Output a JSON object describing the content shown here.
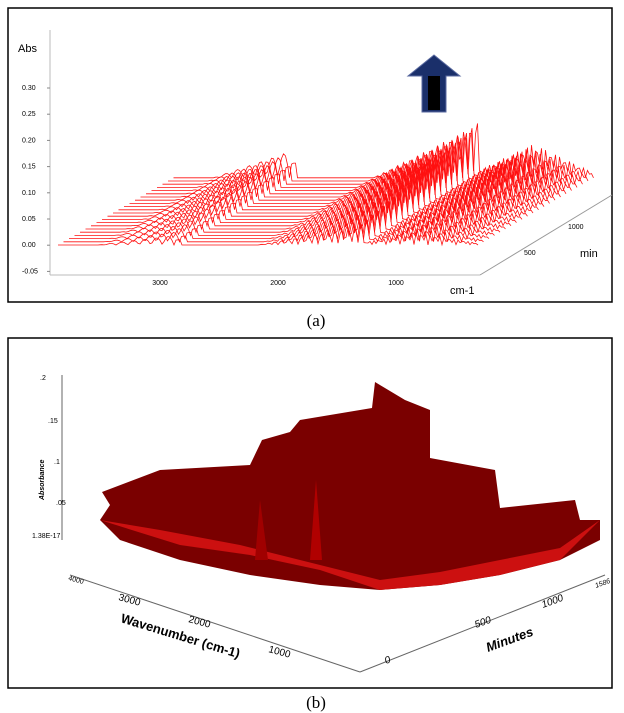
{
  "panel_a": {
    "y_label": "Abs",
    "yticks": [
      "0.30",
      "0.25",
      "0.20",
      "0.15",
      "0.10",
      "0.05",
      "0.00",
      "-0.05"
    ],
    "xticks": [
      "3000",
      "2000",
      "1000"
    ],
    "x_label": "cm-1",
    "zticks": [
      "500",
      "1000"
    ],
    "z_label": "min",
    "caption": "(a)"
  },
  "panel_b": {
    "y_label": "Absorbance",
    "yticks": [
      ".2",
      ".15",
      ".1",
      ".05",
      "1.38E-17"
    ],
    "xticks": [
      "4000",
      "3000",
      "2000",
      "1000"
    ],
    "x_label": "Wavenumber (cm-1)",
    "zticks": [
      "0",
      "500",
      "1000",
      "1586"
    ],
    "z_label": "Minutes",
    "caption": "(b)"
  }
}
